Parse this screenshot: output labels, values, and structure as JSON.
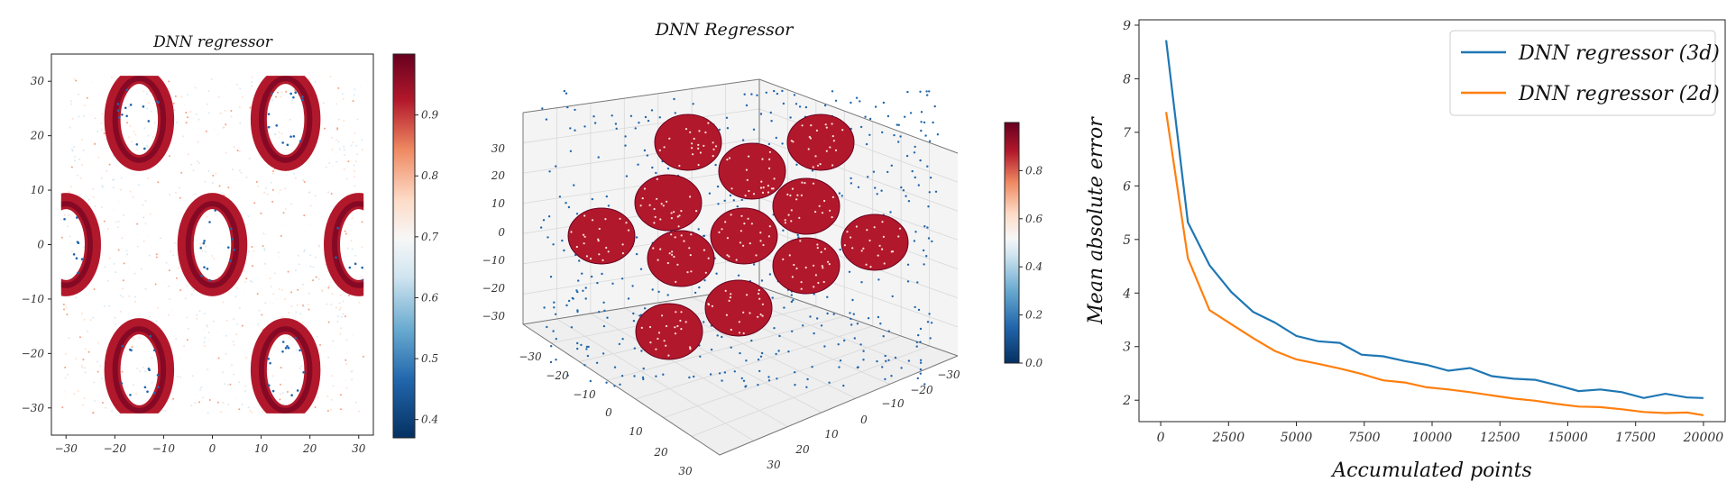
{
  "colors": {
    "dark_red": "#67001f",
    "red": "#b2182b",
    "salmon": "#ef8a62",
    "peach": "#fddbc7",
    "neutral": "#f7f7f7",
    "light_blue": "#d1e5f0",
    "mid_blue": "#67a9cf",
    "blue": "#2166ac",
    "dark_blue": "#053061",
    "series_3d": "#1f77b4",
    "series_2d": "#ff7f0e"
  },
  "chart_data": [
    {
      "type": "scatter",
      "title": "DNN regressor",
      "xlim": [
        -33,
        33
      ],
      "ylim": [
        -35,
        35
      ],
      "x_ticks": [
        "−30",
        "−20",
        "−10",
        "0",
        "10",
        "20",
        "30"
      ],
      "y_ticks": [
        "30",
        "20",
        "10",
        "0",
        "−10",
        "−20",
        "−30"
      ],
      "rings": [
        {
          "cx": -15,
          "cy": 23
        },
        {
          "cx": 15,
          "cy": 23
        },
        {
          "cx": 0,
          "cy": 0
        },
        {
          "cx": -30,
          "cy": 0
        },
        {
          "cx": 30,
          "cy": 0
        },
        {
          "cx": -15,
          "cy": -23
        },
        {
          "cx": 15,
          "cy": -23
        }
      ],
      "colorbar": {
        "range": [
          0.37,
          1.0
        ],
        "ticks": [
          "0.9",
          "0.8",
          "0.7",
          "0.6",
          "0.5",
          "0.4"
        ]
      }
    },
    {
      "type": "scatter3d",
      "title": "DNN Regressor",
      "z_ticks": [
        "30",
        "20",
        "10",
        "0",
        "−10",
        "−20",
        "−30"
      ],
      "x_ticks": [
        "−30",
        "−20",
        "−10",
        "0",
        "10",
        "20",
        "30"
      ],
      "y_ticks": [
        "−30",
        "−20",
        "−10",
        "0",
        "10",
        "20",
        "30"
      ],
      "disks": 12,
      "colorbar": {
        "range": [
          0.0,
          1.0
        ],
        "ticks": [
          "0.8",
          "0.6",
          "0.4",
          "0.2",
          "0.0"
        ]
      }
    },
    {
      "type": "line",
      "xlabel": "Accumulated points",
      "ylabel": "Mean absolute error",
      "xlim": [
        -800,
        20800
      ],
      "ylim": [
        1.6,
        9.1
      ],
      "x_ticks": [
        "0",
        "2500",
        "5000",
        "7500",
        "10000",
        "12500",
        "15000",
        "17500",
        "20000"
      ],
      "y_ticks": [
        "2",
        "3",
        "4",
        "5",
        "6",
        "7",
        "8",
        "9"
      ],
      "series": [
        {
          "name": "DNN regressor (3d)",
          "x": [
            200,
            1000,
            1800,
            2600,
            3400,
            4200,
            5000,
            5800,
            6600,
            7400,
            8200,
            9000,
            9800,
            10600,
            11400,
            12200,
            13000,
            13800,
            14600,
            15400,
            16200,
            17000,
            17800,
            18600,
            19400,
            20000
          ],
          "y": [
            8.72,
            5.32,
            4.52,
            4.02,
            3.65,
            3.45,
            3.2,
            3.1,
            3.07,
            2.85,
            2.82,
            2.73,
            2.66,
            2.55,
            2.6,
            2.45,
            2.4,
            2.38,
            2.28,
            2.17,
            2.2,
            2.15,
            2.04,
            2.12,
            2.05,
            2.04
          ]
        },
        {
          "name": "DNN regressor (2d)",
          "x": [
            200,
            1000,
            1800,
            2600,
            3400,
            4200,
            5000,
            5800,
            6600,
            7400,
            8200,
            9000,
            9800,
            10600,
            11400,
            12200,
            13000,
            13800,
            14600,
            15400,
            16200,
            17000,
            17800,
            18600,
            19400,
            20000
          ],
          "y": [
            7.38,
            4.65,
            3.68,
            3.42,
            3.16,
            2.92,
            2.76,
            2.68,
            2.59,
            2.49,
            2.37,
            2.33,
            2.24,
            2.2,
            2.15,
            2.09,
            2.03,
            1.99,
            1.93,
            1.88,
            1.87,
            1.83,
            1.78,
            1.76,
            1.77,
            1.72
          ]
        }
      ]
    }
  ]
}
